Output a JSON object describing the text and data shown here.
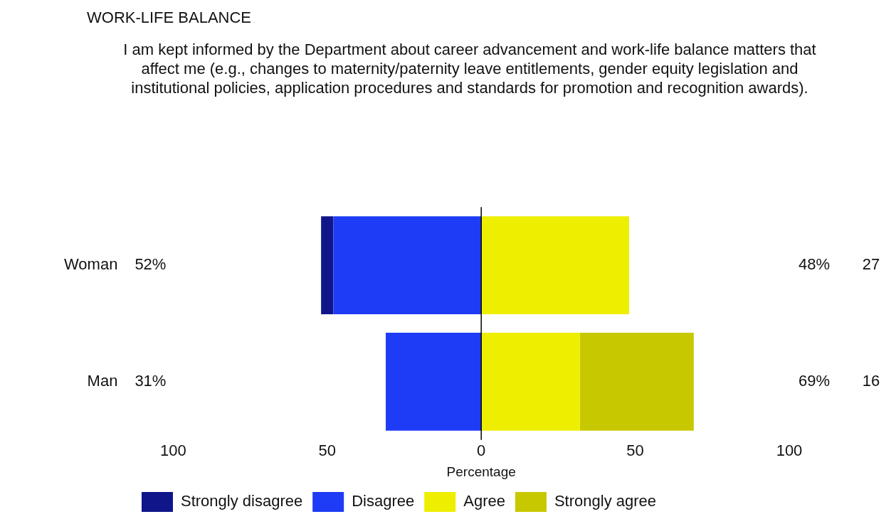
{
  "chart_data": {
    "type": "bar",
    "orientation": "horizontal",
    "stacked": true,
    "title": "WORK-LIFE BALANCE",
    "subtitle": "I am kept informed by the Department about career advancement and work-life balance matters that affect me (e.g., changes to maternity/paternity leave entitlements, gender equity legislation and institutional policies, application procedures and standards for promotion and recognition awards).",
    "xlabel": "Percentage",
    "categories": [
      "Woman",
      "Man"
    ],
    "series": [
      {
        "name": "Disagree",
        "color": "#1e3cf5",
        "values": [
          -48,
          -31
        ]
      },
      {
        "name": "Strongly disagree",
        "color": "#10168a",
        "values": [
          -4,
          0
        ]
      },
      {
        "name": "Agree",
        "color": "#eeee00",
        "values": [
          48,
          32
        ]
      },
      {
        "name": "Strongly agree",
        "color": "#c8c800",
        "values": [
          0,
          37
        ]
      }
    ],
    "xlim": [
      -100,
      100
    ],
    "xticks": [
      {
        "value": -100,
        "label": "100"
      },
      {
        "value": -50,
        "label": "50"
      },
      0,
      50,
      100
    ],
    "ref_lines": [
      {
        "axis": "x",
        "value": 0,
        "color": "#000000"
      }
    ],
    "annotations": [
      "52%",
      "31%",
      "48%",
      "69%",
      "27",
      "16"
    ],
    "grid": false,
    "legend": "bottom"
  }
}
